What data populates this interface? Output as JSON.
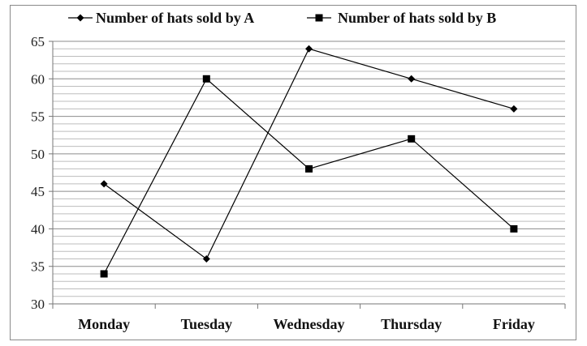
{
  "chart_data": {
    "type": "line",
    "title": "",
    "xlabel": "",
    "ylabel": "",
    "categories": [
      "Monday",
      "Tuesday",
      "Wednesday",
      "Thursday",
      "Friday"
    ],
    "ylim": [
      30,
      65
    ],
    "yticks": [
      30,
      35,
      40,
      45,
      50,
      55,
      60,
      65
    ],
    "minor_grid_step": 1,
    "grid": true,
    "legend_position": "top",
    "series": [
      {
        "name": "Number of hats sold by A",
        "marker": "diamond",
        "color": "#000000",
        "values": [
          46,
          36,
          64,
          60,
          56
        ]
      },
      {
        "name": "Number of hats sold by B",
        "marker": "square",
        "color": "#000000",
        "values": [
          34,
          60,
          48,
          52,
          40
        ]
      }
    ]
  }
}
